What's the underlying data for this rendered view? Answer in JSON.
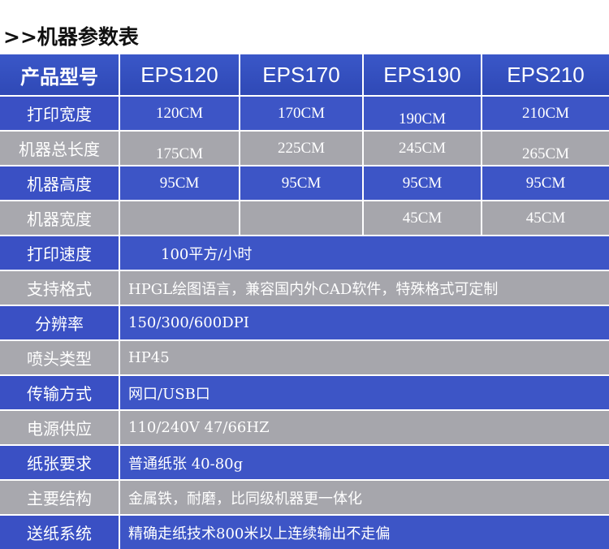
{
  "title": ">>机器参数表",
  "header": [
    "产品型号",
    "EPS120",
    "EPS170",
    "EPS190",
    "EPS210"
  ],
  "rows": [
    {
      "label": "打印宽度",
      "values": [
        "120CM",
        "170CM",
        "190CM",
        "210CM"
      ]
    },
    {
      "label": "机器总长度",
      "values": [
        "175CM",
        "225CM",
        "245CM",
        "265CM"
      ]
    },
    {
      "label": "机器高度",
      "values": [
        "95CM",
        "95CM",
        "95CM",
        "95CM"
      ]
    },
    {
      "label": "机器宽度",
      "values": [
        "",
        "",
        "45CM",
        "45CM"
      ]
    },
    {
      "label": "打印速度",
      "text": "100平方/小时"
    },
    {
      "label": "支持格式",
      "text": "HPGL绘图语言，兼容国内外CAD软件，特殊格式可定制"
    },
    {
      "label": "分辨率",
      "text": "150/300/600DPI"
    },
    {
      "label": "喷头类型",
      "text": "HP45"
    },
    {
      "label": "传输方式",
      "text": "网口/USB口"
    },
    {
      "label": "电源供应",
      "text": "110/240V 47/66HZ"
    },
    {
      "label": "纸张要求",
      "text": "普通纸张 40-80g"
    },
    {
      "label": "主要结构",
      "text": "金属铁，耐磨，比同级机器更一体化"
    },
    {
      "label": "送纸系统",
      "text": "精确走纸技术800米以上连续输出不走偏"
    }
  ],
  "colors": {
    "blue": "#3a50c4",
    "gray": "#a8a8ae",
    "text": "#ffffff"
  }
}
